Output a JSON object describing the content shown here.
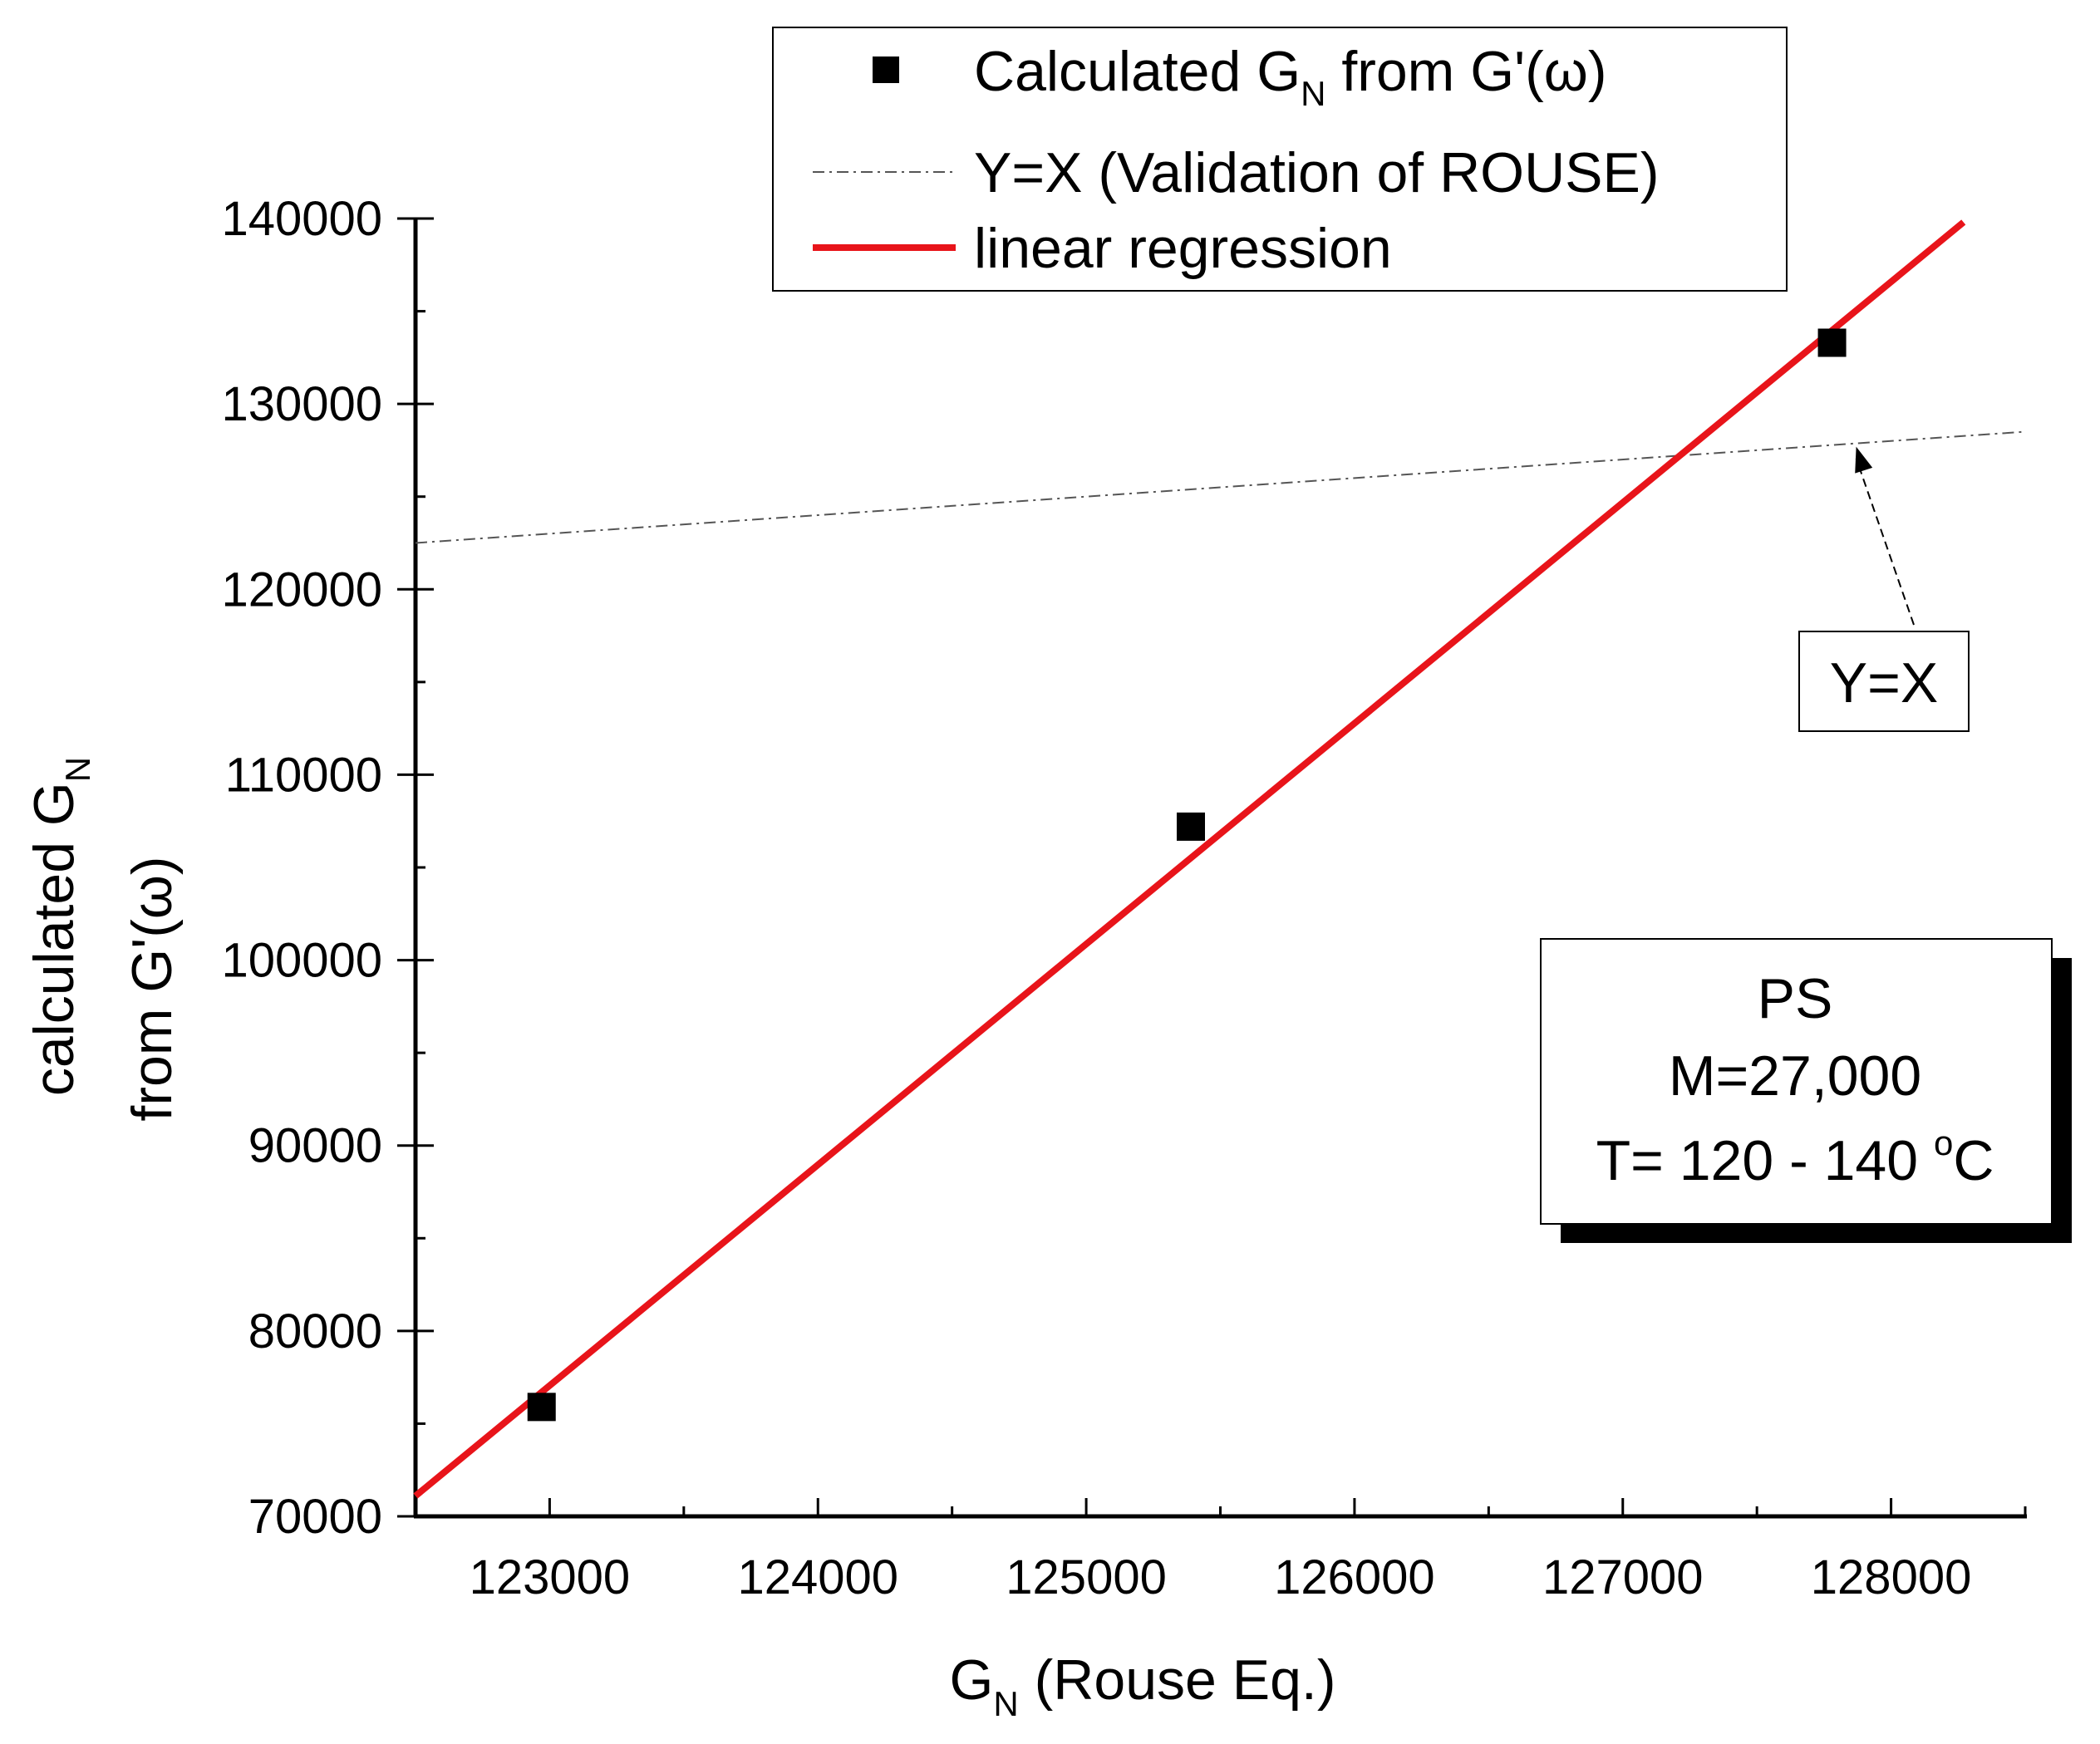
{
  "chart_data": {
    "type": "scatter",
    "title": "",
    "xlabel": {
      "main": "G",
      "sub": "N",
      "rest": " (Rouse Eq.)"
    },
    "ylabel": {
      "line1_main": "calculated G",
      "line1_sub": "N",
      "line2": "from G'(ω)"
    },
    "xlim": [
      122500,
      128500
    ],
    "ylim": [
      70000,
      140000
    ],
    "x_ticks": [
      123000,
      124000,
      125000,
      126000,
      127000,
      128000
    ],
    "x_tick_labels": [
      "123000",
      "124000",
      "125000",
      "126000",
      "127000",
      "128000"
    ],
    "y_ticks": [
      70000,
      80000,
      90000,
      100000,
      110000,
      120000,
      130000,
      140000
    ],
    "y_tick_labels": [
      "70000",
      "80000",
      "90000",
      "100000",
      "110000",
      "120000",
      "130000",
      "140000"
    ],
    "grid": false,
    "series": [
      {
        "name": "Calculated G_N from G'(ω)",
        "kind": "scatter",
        "marker": "square",
        "color": "#000000",
        "x": [
          122970,
          125390,
          127780
        ],
        "y": [
          75900,
          107200,
          133300
        ]
      },
      {
        "name": "Y=X (Validation of ROUSE)",
        "kind": "line",
        "style": "dash-dot",
        "color": "#555555",
        "x": [
          122500,
          128500
        ],
        "y": [
          122500,
          128500
        ]
      },
      {
        "name": "linear regression",
        "kind": "line",
        "style": "solid",
        "color": "#e8141a",
        "x": [
          122500,
          128270
        ],
        "y": [
          71100,
          139800
        ]
      }
    ],
    "legend": {
      "placement": "top-center",
      "entries": [
        {
          "main": "Calculated G",
          "sub": "N",
          "rest": " from G'(ω)"
        },
        {
          "main": "Y=X (Validation of ROUSE)",
          "sub": "",
          "rest": ""
        },
        {
          "main": "linear regression",
          "sub": "",
          "rest": ""
        }
      ]
    },
    "annotations": [
      {
        "text": "Y=X",
        "points_to_x": 127870
      }
    ],
    "info_box": {
      "line1": "PS",
      "line2": "M=27,000",
      "line3_pre": "T= 120 - 140 ",
      "line3_sup": "o",
      "line3_post": "C"
    }
  }
}
